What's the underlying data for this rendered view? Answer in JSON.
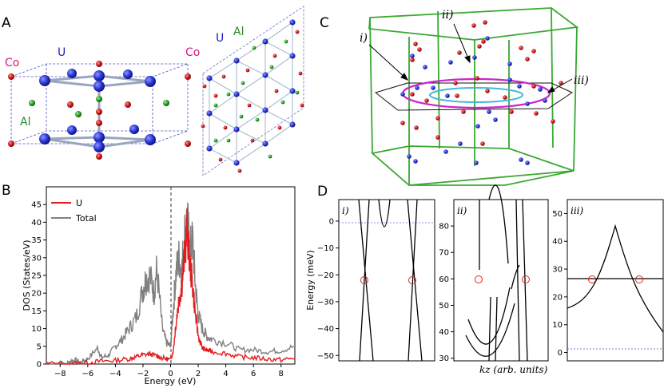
{
  "panels": {
    "A": {
      "letter": "A",
      "co": "Co",
      "u": "U",
      "al": "Al",
      "co2": "Co",
      "u2": "U",
      "al2": "Al"
    },
    "B": {
      "letter": "B"
    },
    "C": {
      "letter": "C",
      "label_i": "i)",
      "label_ii": "ii)",
      "label_iii": "iii)"
    },
    "D": {
      "letter": "D",
      "sub_i": "i)",
      "sub_ii": "ii)",
      "sub_iii": "iii)"
    }
  },
  "colors": {
    "co": "#c0202a",
    "u": "#1a2fcf",
    "al": "#2a9a2a",
    "magenta": "#cc22cc",
    "cyan": "#40b8d8",
    "green": "#3aa832"
  },
  "chart_data": [
    {
      "type": "line",
      "panel": "B",
      "xlabel": "Energy (eV)",
      "ylabel": "DOS (States/eV)",
      "xlim": [
        -9,
        9
      ],
      "ylim": [
        0,
        50
      ],
      "xticks": [
        "−8",
        "−6",
        "−4",
        "−2",
        "0",
        "2",
        "4",
        "6",
        "8"
      ],
      "yticks": [
        "0",
        "5",
        "10",
        "15",
        "20",
        "25",
        "30",
        "35",
        "40",
        "45"
      ],
      "legend_position": "top-left",
      "series": [
        {
          "name": "U",
          "color": "#e31a1c",
          "points": [
            [
              -9,
              0.1
            ],
            [
              -7,
              0.2
            ],
            [
              -6,
              0.4
            ],
            [
              -5,
              0.8
            ],
            [
              -4,
              1.0
            ],
            [
              -3,
              1.5
            ],
            [
              -2.5,
              2
            ],
            [
              -2,
              2.6
            ],
            [
              -1.5,
              2.8
            ],
            [
              -1,
              2.3
            ],
            [
              -0.5,
              1.6
            ],
            [
              0,
              1.2
            ],
            [
              0.2,
              4
            ],
            [
              0.4,
              12
            ],
            [
              0.6,
              18
            ],
            [
              0.8,
              22
            ],
            [
              1.0,
              30
            ],
            [
              1.2,
              38
            ],
            [
              1.4,
              28
            ],
            [
              1.6,
              22
            ],
            [
              1.8,
              14
            ],
            [
              2.0,
              8
            ],
            [
              2.3,
              4.5
            ],
            [
              2.6,
              4.0
            ],
            [
              3,
              3.5
            ],
            [
              4,
              3.0
            ],
            [
              5,
              2.0
            ],
            [
              6,
              1.8
            ],
            [
              7,
              1.4
            ],
            [
              8,
              1.2
            ],
            [
              9,
              1.6
            ]
          ]
        },
        {
          "name": "Total",
          "color": "#808080",
          "points": [
            [
              -9,
              0.1
            ],
            [
              -7.5,
              0.3
            ],
            [
              -7,
              1.2
            ],
            [
              -6.5,
              0.5
            ],
            [
              -6,
              1.5
            ],
            [
              -5.3,
              4.5
            ],
            [
              -5,
              1.8
            ],
            [
              -4.5,
              2.5
            ],
            [
              -4,
              5.0
            ],
            [
              -3.5,
              7
            ],
            [
              -3,
              10
            ],
            [
              -2.5,
              13
            ],
            [
              -2,
              21
            ],
            [
              -1.8,
              24
            ],
            [
              -1.5,
              25
            ],
            [
              -1.2,
              20
            ],
            [
              -1,
              27
            ],
            [
              -0.6,
              10
            ],
            [
              -0.3,
              6
            ],
            [
              0,
              5
            ],
            [
              0.2,
              16
            ],
            [
              0.4,
              26
            ],
            [
              0.6,
              30
            ],
            [
              0.8,
              26
            ],
            [
              1.0,
              36
            ],
            [
              1.2,
              41
            ],
            [
              1.4,
              32
            ],
            [
              1.6,
              35
            ],
            [
              1.8,
              22
            ],
            [
              2.0,
              14
            ],
            [
              2.3,
              10
            ],
            [
              2.6,
              8
            ],
            [
              3,
              7
            ],
            [
              4,
              6
            ],
            [
              5,
              4
            ],
            [
              6,
              4
            ],
            [
              7,
              3.5
            ],
            [
              8,
              3.8
            ],
            [
              9,
              5
            ]
          ]
        }
      ]
    },
    {
      "type": "line",
      "panel": "D-i",
      "ylabel": "Energy (meV)",
      "ylim": [
        -52,
        8
      ],
      "yticks": [
        "0",
        "−10",
        "−20",
        "−30",
        "−40",
        "−50"
      ],
      "reference_line": 0
    },
    {
      "type": "line",
      "panel": "D-ii",
      "xlabel": "kz (arb. units)",
      "ylim": [
        29,
        90
      ],
      "yticks": [
        "80",
        "70",
        "60",
        "50",
        "40",
        "30"
      ]
    },
    {
      "type": "line",
      "panel": "D-iii",
      "ylim": [
        -3,
        55
      ],
      "yticks": [
        "50",
        "40",
        "30",
        "20",
        "10",
        "0"
      ],
      "reference_line": 0
    }
  ]
}
